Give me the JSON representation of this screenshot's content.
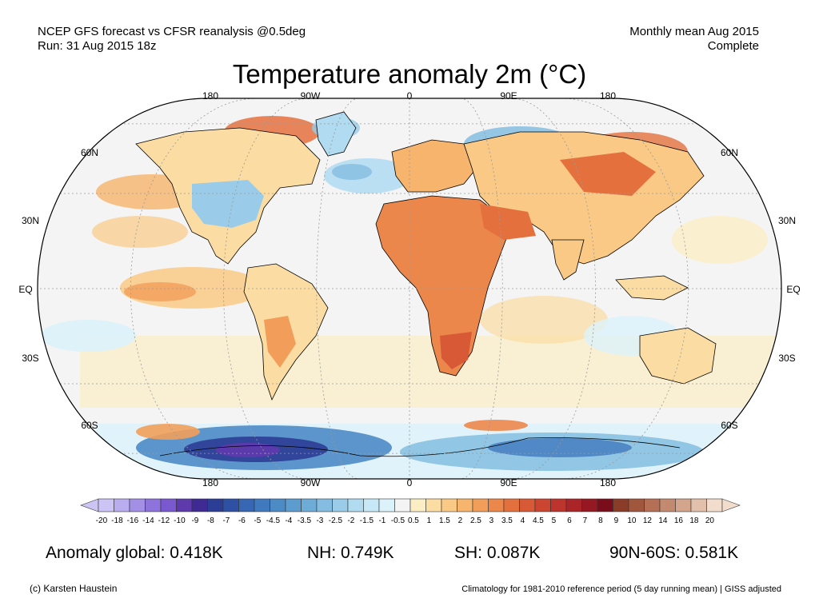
{
  "header": {
    "line1_left": "NCEP GFS forecast vs CFSR reanalysis @0.5deg",
    "line2_left": "Run: 31 Aug 2015 18z",
    "line1_right": "Monthly mean Aug 2015",
    "line2_right": "Complete"
  },
  "title": "Temperature anomaly 2m (°C)",
  "map": {
    "lon_labels": [
      "180",
      "90W",
      "0",
      "90E",
      "180"
    ],
    "lat_labels": [
      "60N",
      "30N",
      "EQ",
      "30S",
      "60S"
    ],
    "colors": {
      "ocean": "#f4f4f4",
      "land_outline": "#000000",
      "grid": "#999999"
    }
  },
  "colorbar": {
    "labels": [
      "-20",
      "-18",
      "-16",
      "-14",
      "-12",
      "-10",
      "-9",
      "-8",
      "-7",
      "-6",
      "-5",
      "-4.5",
      "-4",
      "-3.5",
      "-3",
      "-2.5",
      "-2",
      "-1.5",
      "-1",
      "-0.5",
      "0.5",
      "1",
      "1.5",
      "2",
      "2.5",
      "3",
      "3.5",
      "4",
      "4.5",
      "5",
      "6",
      "7",
      "8",
      "9",
      "10",
      "12",
      "14",
      "16",
      "18",
      "20"
    ],
    "colors": [
      "#ccc4f4",
      "#b9acef",
      "#a38fe6",
      "#8e73dc",
      "#7a58d0",
      "#5e3aac",
      "#3e2a92",
      "#2c3d96",
      "#2e51a6",
      "#3766b3",
      "#4079bd",
      "#4c8bc6",
      "#5c9ccf",
      "#6eacd8",
      "#84bde1",
      "#9acce9",
      "#b0dbf1",
      "#c6e8f7",
      "#dcf2fb",
      "#f4f4f4",
      "#fbeec4",
      "#fbdca2",
      "#f9c985",
      "#f6b46c",
      "#f29e5a",
      "#ec874b",
      "#e4703e",
      "#d85936",
      "#cb4530",
      "#bd342c",
      "#ab2528",
      "#951822",
      "#7a0d1c",
      "#8a3c28",
      "#a0573d",
      "#b46f55",
      "#c48a70",
      "#d4a58d",
      "#e3c0ab",
      "#f2dccc"
    ]
  },
  "stats": {
    "global": "Anomaly global: 0.418K",
    "nh": "NH: 0.749K",
    "sh": "SH: 0.087K",
    "band": "90N-60S: 0.581K"
  },
  "footer": {
    "left": "(c) Karsten Haustein",
    "right": "Climatology for 1981-2010 reference period (5 day running mean) | GISS adjusted"
  }
}
